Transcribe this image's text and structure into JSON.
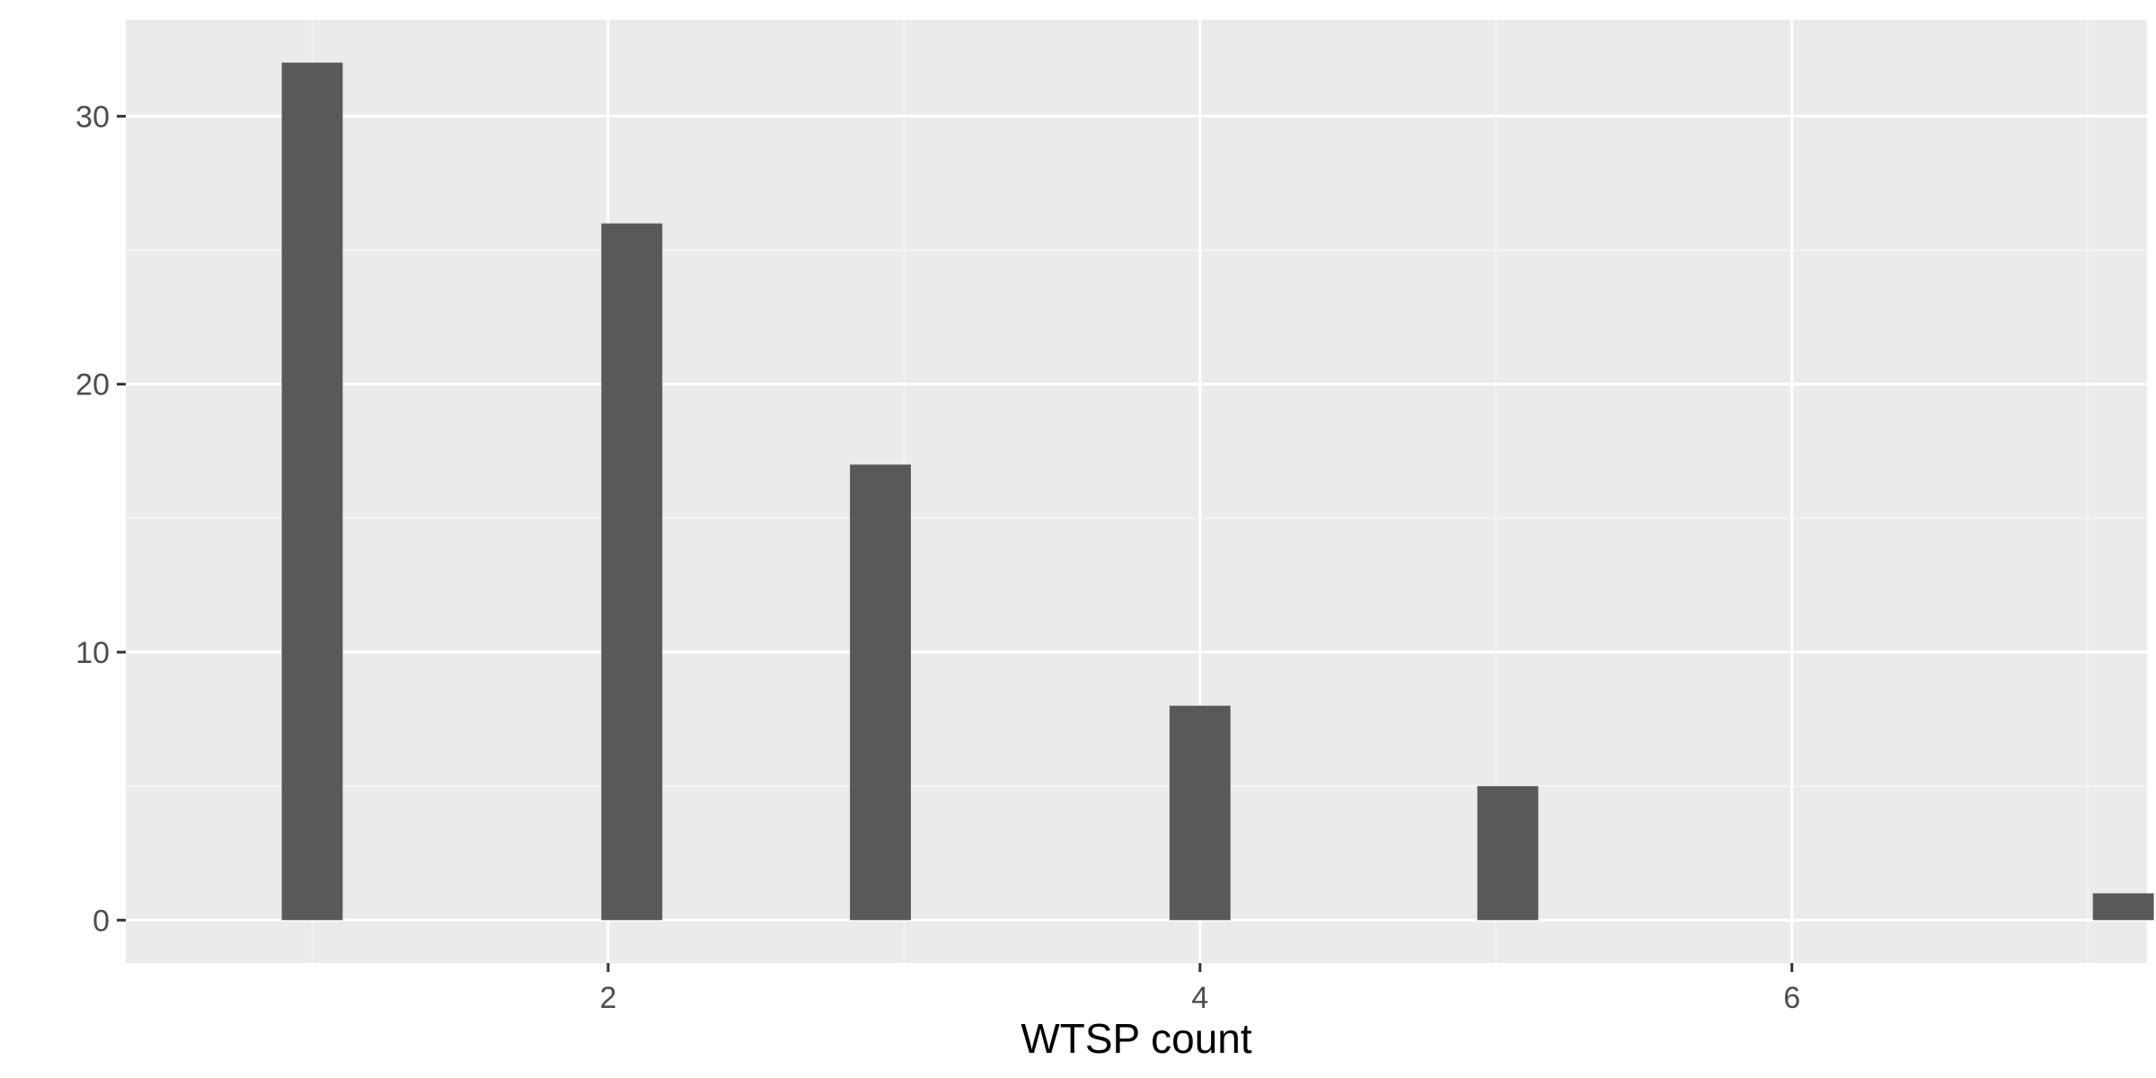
{
  "chart_data": {
    "type": "bar",
    "title": "",
    "xlabel": "WTSP count",
    "ylabel": "",
    "bars": [
      {
        "x": 1.0,
        "value": 32
      },
      {
        "x": 2.08,
        "value": 26
      },
      {
        "x": 2.92,
        "value": 17
      },
      {
        "x": 4.0,
        "value": 8
      },
      {
        "x": 5.04,
        "value": 5
      },
      {
        "x": 7.12,
        "value": 1
      }
    ],
    "bar_width": 0.206,
    "xlim": [
      0.37,
      7.2
    ],
    "ylim": [
      -1.6,
      33.6
    ],
    "x_ticks": [
      2,
      4,
      6
    ],
    "x_minor_ticks": [
      1,
      3,
      5,
      7
    ],
    "y_ticks": [
      0,
      10,
      20,
      30
    ],
    "y_minor_ticks": [
      5,
      15,
      25
    ],
    "grid": true,
    "legend": "none",
    "colors": {
      "bar": "#595959",
      "panel_background": "#ebebeb",
      "grid_major": "#ffffff",
      "grid_minor": "#f7f7f7",
      "tick_label": "#4d4d4d",
      "axis_title": "#000000"
    }
  }
}
